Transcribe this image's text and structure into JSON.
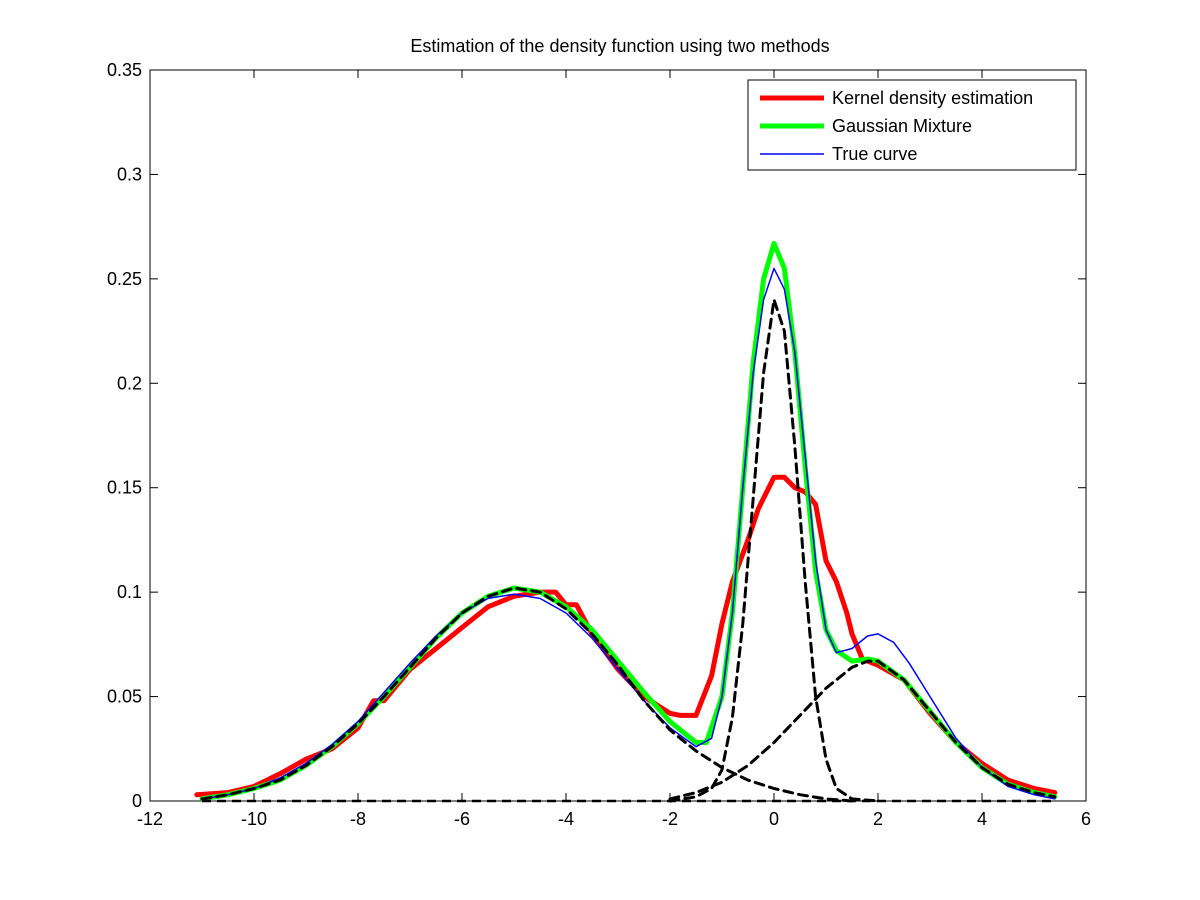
{
  "chart_data": {
    "type": "line",
    "title": "Estimation of the density function using two methods",
    "xlabel": "",
    "ylabel": "",
    "xlim": [
      -12,
      6
    ],
    "ylim": [
      0,
      0.35
    ],
    "x_ticks": [
      -12,
      -10,
      -8,
      -6,
      -4,
      -2,
      0,
      2,
      4,
      6
    ],
    "y_ticks": [
      0,
      0.05,
      0.1,
      0.15,
      0.2,
      0.25,
      0.3,
      0.35
    ],
    "x_tick_labels": [
      "-12",
      "-10",
      "-8",
      "-6",
      "-4",
      "-2",
      "0",
      "2",
      "4",
      "6"
    ],
    "y_tick_labels": [
      "0",
      "0.05",
      "0.1",
      "0.15",
      "0.2",
      "0.25",
      "0.3",
      "0.35"
    ],
    "grid": false,
    "legend_position": "top-right",
    "series": [
      {
        "name": "Kernel density estimation",
        "color": "#ff0000",
        "style": "solid-thick",
        "x": [
          -11.1,
          -10.5,
          -10,
          -9.5,
          -9,
          -8.5,
          -8,
          -7.7,
          -7.5,
          -7,
          -6.5,
          -6,
          -5.5,
          -5,
          -4.5,
          -4.2,
          -4,
          -3.8,
          -3.5,
          -3,
          -2.5,
          -2,
          -1.8,
          -1.5,
          -1.2,
          -1,
          -0.8,
          -0.5,
          -0.3,
          0,
          0.2,
          0.4,
          0.6,
          0.8,
          1,
          1.2,
          1.4,
          1.5,
          1.7,
          2,
          2.5,
          3,
          3.5,
          4,
          4.5,
          5,
          5.4
        ],
        "y": [
          0.003,
          0.004,
          0.007,
          0.013,
          0.02,
          0.025,
          0.035,
          0.048,
          0.048,
          0.063,
          0.073,
          0.083,
          0.093,
          0.098,
          0.1,
          0.1,
          0.094,
          0.094,
          0.08,
          0.063,
          0.05,
          0.042,
          0.041,
          0.041,
          0.06,
          0.085,
          0.105,
          0.125,
          0.14,
          0.155,
          0.155,
          0.15,
          0.148,
          0.142,
          0.115,
          0.105,
          0.09,
          0.08,
          0.068,
          0.065,
          0.058,
          0.042,
          0.028,
          0.018,
          0.01,
          0.006,
          0.004
        ]
      },
      {
        "name": "Gaussian Mixture",
        "color": "#00ff00",
        "style": "solid-thick",
        "x": [
          -11,
          -10.5,
          -10,
          -9.5,
          -9,
          -8.5,
          -8,
          -7.5,
          -7,
          -6.5,
          -6,
          -5.5,
          -5,
          -4.5,
          -4,
          -3.5,
          -3,
          -2.5,
          -2,
          -1.5,
          -1.3,
          -1,
          -0.8,
          -0.6,
          -0.4,
          -0.2,
          0,
          0.2,
          0.4,
          0.6,
          0.8,
          1,
          1.2,
          1.5,
          1.8,
          2,
          2.5,
          3,
          3.5,
          4,
          4.5,
          5,
          5.4
        ],
        "y": [
          0.001,
          0.003,
          0.006,
          0.01,
          0.017,
          0.026,
          0.037,
          0.05,
          0.064,
          0.078,
          0.09,
          0.098,
          0.102,
          0.1,
          0.093,
          0.082,
          0.067,
          0.052,
          0.038,
          0.028,
          0.028,
          0.05,
          0.09,
          0.15,
          0.21,
          0.25,
          0.267,
          0.255,
          0.215,
          0.16,
          0.11,
          0.082,
          0.072,
          0.067,
          0.068,
          0.067,
          0.058,
          0.043,
          0.028,
          0.016,
          0.008,
          0.004,
          0.002
        ]
      },
      {
        "name": "True curve",
        "color": "#0000ff",
        "style": "solid-thin",
        "x": [
          -11,
          -10.5,
          -10,
          -9.5,
          -9,
          -8.5,
          -8,
          -7.5,
          -7,
          -6.5,
          -6,
          -5.5,
          -5,
          -4.5,
          -4,
          -3.5,
          -3,
          -2.5,
          -2,
          -1.5,
          -1.2,
          -1,
          -0.8,
          -0.6,
          -0.4,
          -0.2,
          0,
          0.2,
          0.4,
          0.6,
          0.8,
          1,
          1.2,
          1.5,
          1.8,
          2,
          2.3,
          2.6,
          3,
          3.5,
          4,
          4.5,
          5,
          5.4
        ],
        "y": [
          0.001,
          0.003,
          0.006,
          0.011,
          0.018,
          0.027,
          0.038,
          0.052,
          0.066,
          0.079,
          0.09,
          0.097,
          0.099,
          0.097,
          0.09,
          0.078,
          0.063,
          0.048,
          0.035,
          0.026,
          0.03,
          0.05,
          0.09,
          0.15,
          0.205,
          0.24,
          0.255,
          0.245,
          0.215,
          0.165,
          0.115,
          0.082,
          0.071,
          0.073,
          0.079,
          0.08,
          0.076,
          0.066,
          0.05,
          0.03,
          0.016,
          0.007,
          0.003,
          0.001
        ]
      },
      {
        "name": "",
        "color": "#000000",
        "style": "dashed",
        "x": [
          -11,
          -10.5,
          -10,
          -9.5,
          -9,
          -8.5,
          -8,
          -7.5,
          -7,
          -6.5,
          -6,
          -5.5,
          -5,
          -4.5,
          -4,
          -3.5,
          -3,
          -2.5,
          -2,
          -1.5,
          -1,
          -0.5,
          0,
          0.5,
          1,
          1.5
        ],
        "y": [
          0.001,
          0.003,
          0.006,
          0.01,
          0.017,
          0.026,
          0.037,
          0.05,
          0.064,
          0.078,
          0.09,
          0.098,
          0.102,
          0.1,
          0.092,
          0.08,
          0.065,
          0.048,
          0.034,
          0.024,
          0.016,
          0.01,
          0.006,
          0.003,
          0.001,
          0
        ]
      },
      {
        "name": "",
        "color": "#000000",
        "style": "dashed",
        "x": [
          -2,
          -1.5,
          -1.2,
          -1,
          -0.8,
          -0.6,
          -0.4,
          -0.2,
          0,
          0.2,
          0.4,
          0.6,
          0.8,
          1,
          1.2,
          1.5,
          2
        ],
        "y": [
          0,
          0.002,
          0.006,
          0.015,
          0.04,
          0.085,
          0.145,
          0.205,
          0.24,
          0.225,
          0.17,
          0.105,
          0.05,
          0.02,
          0.006,
          0.001,
          0
        ]
      },
      {
        "name": "",
        "color": "#000000",
        "style": "dashed",
        "x": [
          -2,
          -1.5,
          -1,
          -0.5,
          0,
          0.5,
          1,
          1.5,
          1.8,
          2,
          2.5,
          3,
          3.5,
          4,
          4.5,
          5,
          5.4
        ],
        "y": [
          0.001,
          0.004,
          0.009,
          0.017,
          0.028,
          0.041,
          0.054,
          0.064,
          0.067,
          0.067,
          0.058,
          0.043,
          0.028,
          0.016,
          0.008,
          0.004,
          0.002
        ]
      }
    ]
  }
}
